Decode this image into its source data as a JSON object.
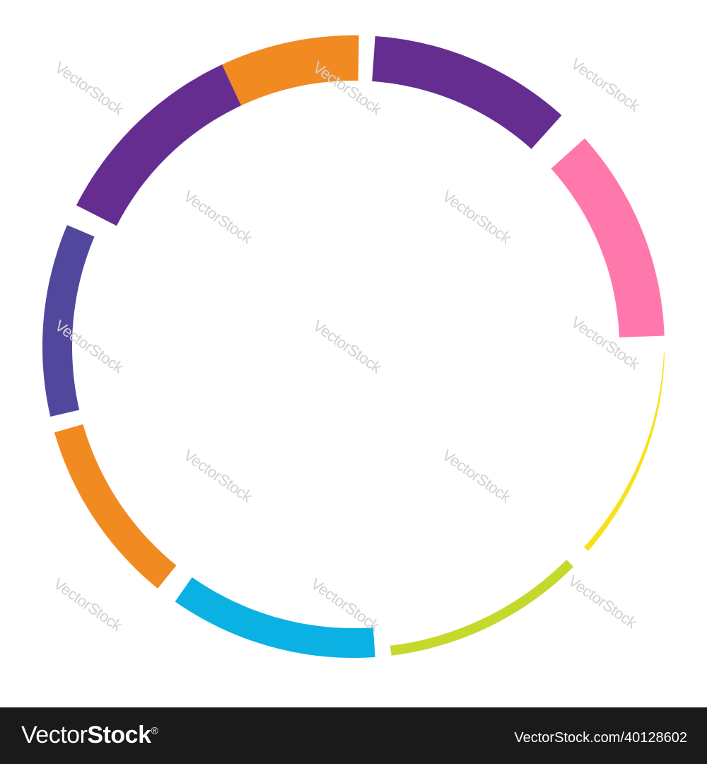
{
  "diagram": {
    "ring_segments": [
      {
        "name": "orange-top",
        "start_deg": -25,
        "end_deg": 1,
        "width": "thick",
        "color": "#f28a22"
      },
      {
        "name": "purple-top",
        "start_deg": 4,
        "end_deg": 42,
        "width": "thick",
        "color": "#662d91"
      },
      {
        "name": "pink",
        "start_deg": 48,
        "end_deg": 88,
        "width": "thick",
        "color": "#ff78ac"
      },
      {
        "name": "yellow",
        "start_deg": 91,
        "end_deg": 131,
        "width": "taper",
        "color": "#f7e11a"
      },
      {
        "name": "lime",
        "start_deg": 135,
        "end_deg": 173,
        "width": "thin",
        "color": "#c5d92d"
      },
      {
        "name": "cyan",
        "start_deg": 176,
        "end_deg": 215,
        "width": "medium",
        "color": "#0cb1e3"
      },
      {
        "name": "orange-bottom",
        "start_deg": 219,
        "end_deg": 254,
        "width": "medium",
        "color": "#f28a22"
      },
      {
        "name": "indigo",
        "start_deg": 257,
        "end_deg": 293,
        "width": "medium",
        "color": "#51489e"
      },
      {
        "name": "purple-left",
        "start_deg": 297,
        "end_deg": 335,
        "width": "thick",
        "color": "#662d91"
      }
    ]
  },
  "watermark": {
    "text": "VectorStock"
  },
  "footer": {
    "brand_prefix": "Vector",
    "brand_suffix": "Stock",
    "registered_mark": "®",
    "asset_id": "VectorStock.com/40128602"
  }
}
